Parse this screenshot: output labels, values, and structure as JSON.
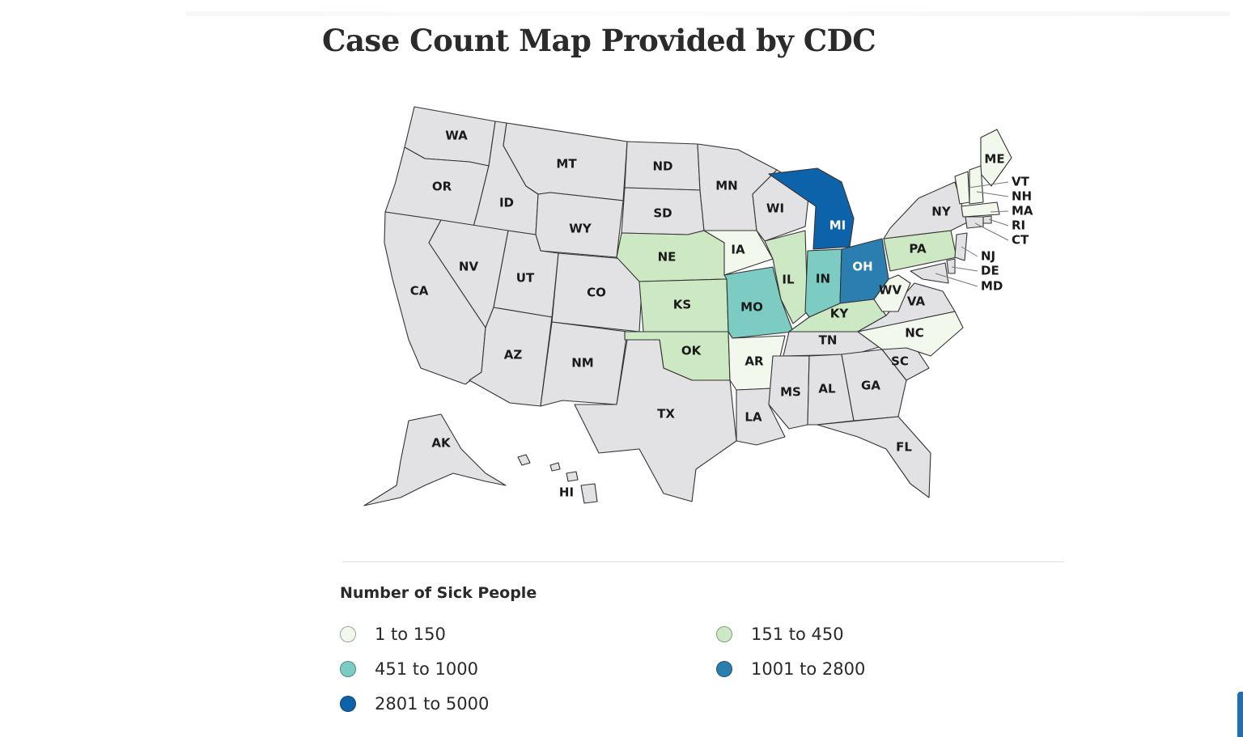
{
  "title": "Case Count Map Provided by CDC",
  "legend": {
    "title": "Number of Sick People",
    "bins": [
      {
        "id": "b1",
        "label": "1 to 150",
        "color": "#f2f9ec"
      },
      {
        "id": "b2",
        "label": "151 to 450",
        "color": "#cde9c4"
      },
      {
        "id": "b3",
        "label": "451 to 1000",
        "color": "#7cccc4"
      },
      {
        "id": "b4",
        "label": "1001 to 2800",
        "color": "#2a7fb0"
      },
      {
        "id": "b5",
        "label": "2801 to 5000",
        "color": "#0d63aa"
      }
    ],
    "no_data_color": "#e2e2e4"
  },
  "states": [
    {
      "abbr": "WA",
      "bin": null
    },
    {
      "abbr": "OR",
      "bin": null
    },
    {
      "abbr": "CA",
      "bin": null
    },
    {
      "abbr": "ID",
      "bin": null
    },
    {
      "abbr": "NV",
      "bin": null
    },
    {
      "abbr": "MT",
      "bin": null
    },
    {
      "abbr": "WY",
      "bin": null
    },
    {
      "abbr": "UT",
      "bin": null
    },
    {
      "abbr": "AZ",
      "bin": null
    },
    {
      "abbr": "CO",
      "bin": null
    },
    {
      "abbr": "NM",
      "bin": null
    },
    {
      "abbr": "ND",
      "bin": null
    },
    {
      "abbr": "SD",
      "bin": null
    },
    {
      "abbr": "NE",
      "bin": "b2"
    },
    {
      "abbr": "KS",
      "bin": "b2"
    },
    {
      "abbr": "OK",
      "bin": "b2"
    },
    {
      "abbr": "TX",
      "bin": null
    },
    {
      "abbr": "MN",
      "bin": null
    },
    {
      "abbr": "IA",
      "bin": "b1"
    },
    {
      "abbr": "MO",
      "bin": "b3"
    },
    {
      "abbr": "AR",
      "bin": "b1"
    },
    {
      "abbr": "LA",
      "bin": null
    },
    {
      "abbr": "WI",
      "bin": null
    },
    {
      "abbr": "IL",
      "bin": "b2"
    },
    {
      "abbr": "MI",
      "bin": "b5"
    },
    {
      "abbr": "IN",
      "bin": "b3"
    },
    {
      "abbr": "OH",
      "bin": "b4"
    },
    {
      "abbr": "KY",
      "bin": "b2"
    },
    {
      "abbr": "TN",
      "bin": null
    },
    {
      "abbr": "MS",
      "bin": null
    },
    {
      "abbr": "AL",
      "bin": null
    },
    {
      "abbr": "GA",
      "bin": null
    },
    {
      "abbr": "FL",
      "bin": null
    },
    {
      "abbr": "SC",
      "bin": null
    },
    {
      "abbr": "NC",
      "bin": "b1"
    },
    {
      "abbr": "VA",
      "bin": null
    },
    {
      "abbr": "WV",
      "bin": "b1"
    },
    {
      "abbr": "PA",
      "bin": "b2"
    },
    {
      "abbr": "NY",
      "bin": null
    },
    {
      "abbr": "ME",
      "bin": "b1"
    },
    {
      "abbr": "VT",
      "bin": "b1"
    },
    {
      "abbr": "NH",
      "bin": "b1"
    },
    {
      "abbr": "MA",
      "bin": "b1"
    },
    {
      "abbr": "RI",
      "bin": null
    },
    {
      "abbr": "CT",
      "bin": null
    },
    {
      "abbr": "NJ",
      "bin": null
    },
    {
      "abbr": "DE",
      "bin": null
    },
    {
      "abbr": "MD",
      "bin": null
    },
    {
      "abbr": "AK",
      "bin": null
    },
    {
      "abbr": "HI",
      "bin": null
    }
  ]
}
